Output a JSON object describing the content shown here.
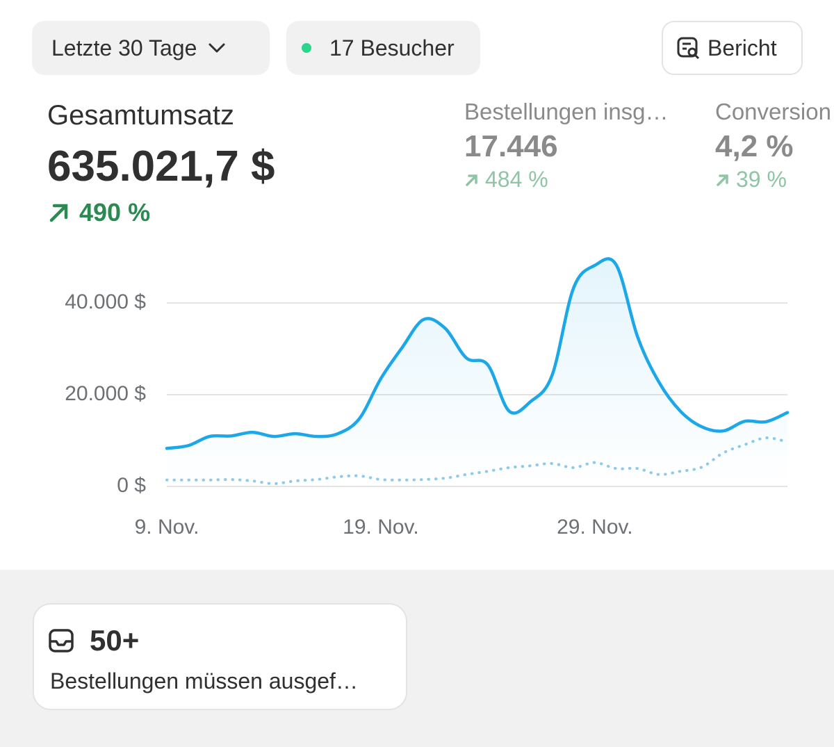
{
  "header": {
    "period": "Letzte 30 Tage",
    "visitors": "17 Besucher",
    "report": "Bericht"
  },
  "metrics": [
    {
      "label": "Gesamtumsatz",
      "value": "635.021,7 $",
      "change": "490 %"
    },
    {
      "label": "Bestellungen insg…",
      "value": "17.446",
      "change": "484 %"
    },
    {
      "label": "Conversion",
      "value": "4,2 %",
      "change": "39 %"
    }
  ],
  "chart_data": {
    "type": "line",
    "categories": [
      "9. Nov.",
      null,
      null,
      null,
      null,
      null,
      null,
      null,
      null,
      null,
      "19. Nov.",
      null,
      null,
      null,
      null,
      null,
      null,
      null,
      null,
      null,
      "29. Nov.",
      null,
      null,
      null,
      null,
      null,
      null,
      null,
      null,
      null
    ],
    "series": [
      {
        "color": "#1ba7e8",
        "line_style": "solid",
        "fill": true,
        "values": [
          8300,
          8900,
          10900,
          11000,
          11800,
          10900,
          11500,
          10900,
          11500,
          14800,
          23500,
          30300,
          36400,
          34500,
          28000,
          26500,
          16400,
          18500,
          24200,
          43200,
          48200,
          48300,
          32600,
          22700,
          16400,
          13000,
          12100,
          14200,
          14100,
          16100
        ]
      },
      {
        "color": "#8ecbe8",
        "line_style": "dotted",
        "fill": false,
        "values": [
          1400,
          1400,
          1400,
          1500,
          1200,
          600,
          1200,
          1500,
          2100,
          2300,
          1500,
          1400,
          1500,
          1800,
          2600,
          3300,
          4100,
          4500,
          5000,
          4100,
          5200,
          3900,
          3900,
          2600,
          3300,
          4200,
          7300,
          9100,
          10600,
          9700
        ]
      }
    ],
    "ylim": [
      0,
      55000
    ],
    "yticks": [
      {
        "value": 0,
        "label": "0 $"
      },
      {
        "value": 20000,
        "label": "20.000 $"
      },
      {
        "value": 40000,
        "label": "40.000 $"
      }
    ],
    "grid": true
  },
  "card": {
    "count": "50+",
    "text": "Bestellungen müssen ausgef…"
  }
}
